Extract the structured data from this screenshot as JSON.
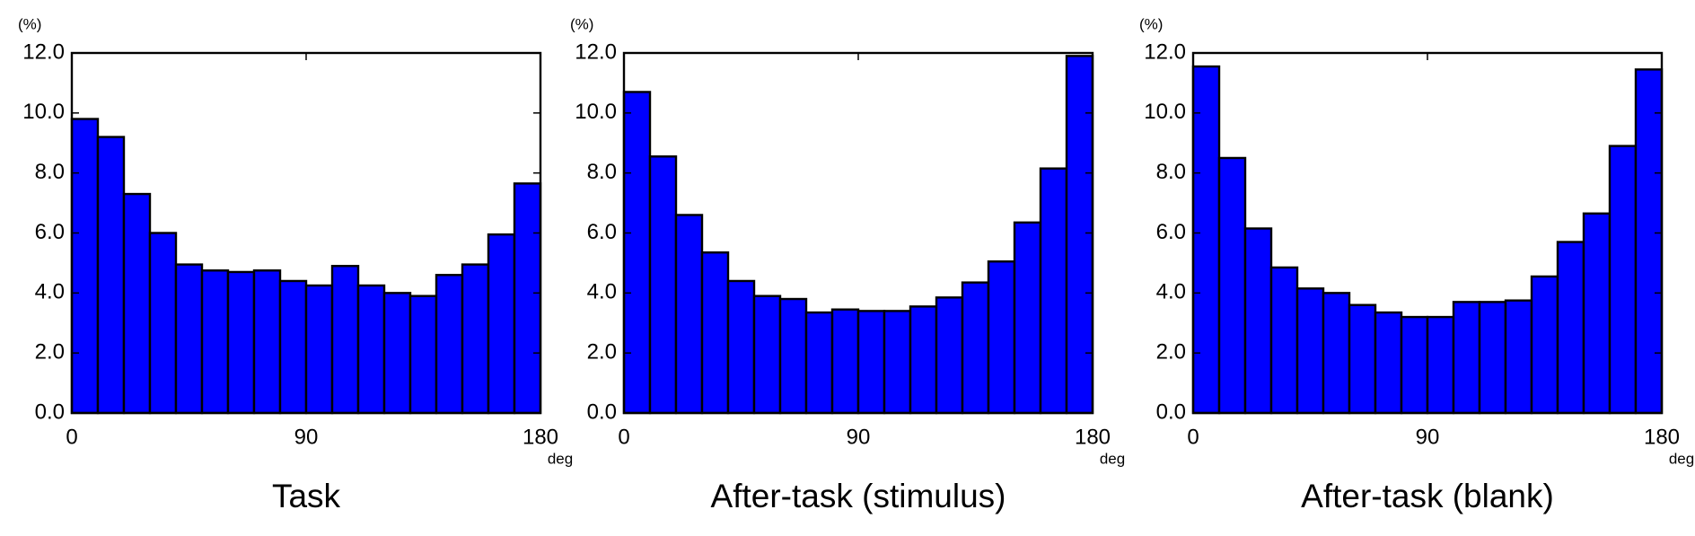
{
  "chart_data": [
    {
      "type": "histogram",
      "title": "Task",
      "y_unit": "(%)",
      "x_unit": "deg",
      "color": "#0000ff",
      "bins": [
        0,
        10,
        20,
        30,
        40,
        50,
        60,
        70,
        80,
        90,
        100,
        110,
        120,
        130,
        140,
        150,
        160,
        170,
        180
      ],
      "values": [
        9.8,
        9.2,
        7.3,
        6.0,
        4.95,
        4.75,
        4.7,
        4.75,
        4.4,
        4.25,
        4.9,
        4.25,
        4.0,
        3.9,
        4.6,
        4.95,
        5.95,
        7.65
      ],
      "xlim": [
        0,
        180
      ],
      "xticks": [
        0,
        90,
        180
      ],
      "ylim": [
        0,
        12
      ],
      "yticks": [
        {
          "value": 0,
          "label": "0.0"
        },
        {
          "value": 2,
          "label": "2.0"
        },
        {
          "value": 4,
          "label": "4.0"
        },
        {
          "value": 6,
          "label": "6.0"
        },
        {
          "value": 8,
          "label": "8.0"
        },
        {
          "value": 10,
          "label": "10.0"
        },
        {
          "value": 12,
          "label": "12.0"
        }
      ]
    },
    {
      "type": "histogram",
      "title": "After-task (stimulus)",
      "y_unit": "(%)",
      "x_unit": "deg",
      "color": "#0000ff",
      "bins": [
        0,
        10,
        20,
        30,
        40,
        50,
        60,
        70,
        80,
        90,
        100,
        110,
        120,
        130,
        140,
        150,
        160,
        170,
        180
      ],
      "values": [
        10.7,
        8.55,
        6.6,
        5.35,
        4.4,
        3.9,
        3.8,
        3.35,
        3.45,
        3.4,
        3.4,
        3.55,
        3.85,
        4.35,
        5.05,
        6.35,
        8.15,
        11.9
      ],
      "xlim": [
        0,
        180
      ],
      "xticks": [
        0,
        90,
        180
      ],
      "ylim": [
        0,
        12
      ],
      "yticks": [
        {
          "value": 0,
          "label": "0.0"
        },
        {
          "value": 2,
          "label": "2.0"
        },
        {
          "value": 4,
          "label": "4.0"
        },
        {
          "value": 6,
          "label": "6.0"
        },
        {
          "value": 8,
          "label": "8.0"
        },
        {
          "value": 10,
          "label": "10.0"
        },
        {
          "value": 12,
          "label": "12.0"
        }
      ]
    },
    {
      "type": "histogram",
      "title": "After-task (blank)",
      "y_unit": "(%)",
      "x_unit": "deg",
      "color": "#0000ff",
      "bins": [
        0,
        10,
        20,
        30,
        40,
        50,
        60,
        70,
        80,
        90,
        100,
        110,
        120,
        130,
        140,
        150,
        160,
        170,
        180
      ],
      "values": [
        11.55,
        8.5,
        6.15,
        4.85,
        4.15,
        4.0,
        3.6,
        3.35,
        3.2,
        3.2,
        3.7,
        3.7,
        3.75,
        4.55,
        5.7,
        6.65,
        8.9,
        11.45
      ],
      "xlim": [
        0,
        180
      ],
      "xticks": [
        0,
        90,
        180
      ],
      "ylim": [
        0,
        12
      ],
      "yticks": [
        {
          "value": 0,
          "label": "0.0"
        },
        {
          "value": 2,
          "label": "2.0"
        },
        {
          "value": 4,
          "label": "4.0"
        },
        {
          "value": 6,
          "label": "6.0"
        },
        {
          "value": 8,
          "label": "8.0"
        },
        {
          "value": 10,
          "label": "10.0"
        },
        {
          "value": 12,
          "label": "12.0"
        }
      ]
    }
  ]
}
